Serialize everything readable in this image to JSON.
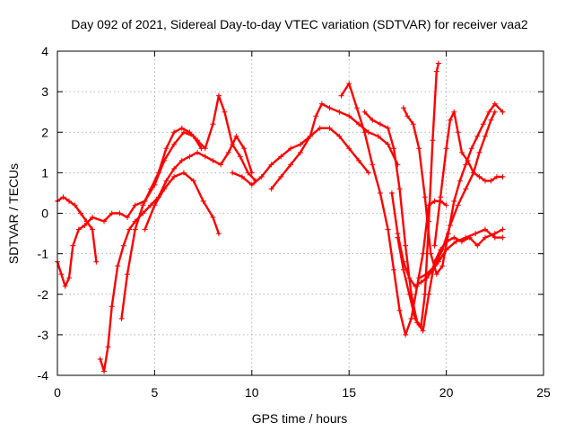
{
  "chart_data": {
    "type": "scatter",
    "title": "Day 092 of 2021, Sidereal Day-to-day VTEC variation (SDTVAR) for receiver vaa2",
    "xlabel": "GPS time / hours",
    "ylabel": "SDTVAR / TECUs",
    "xlim": [
      0,
      25
    ],
    "ylim": [
      -4,
      4
    ],
    "xticks": [
      "0",
      "5",
      "10",
      "15",
      "20",
      "25"
    ],
    "yticks": [
      "-4",
      "-3",
      "-2",
      "-1",
      "0",
      "1",
      "2",
      "3",
      "4"
    ],
    "grid": true,
    "marker": "plus",
    "color": "#ff0000",
    "series": [
      {
        "points": [
          [
            0.0,
            0.3
          ],
          [
            0.3,
            0.4
          ],
          [
            0.6,
            0.3
          ],
          [
            0.9,
            0.2
          ],
          [
            1.2,
            0.0
          ],
          [
            1.5,
            -0.2
          ],
          [
            1.8,
            -0.4
          ],
          [
            2.0,
            -1.2
          ]
        ]
      },
      {
        "points": [
          [
            0.0,
            -1.2
          ],
          [
            0.2,
            -1.5
          ],
          [
            0.4,
            -1.8
          ],
          [
            0.6,
            -1.6
          ],
          [
            0.8,
            -0.8
          ],
          [
            1.1,
            -0.4
          ],
          [
            1.4,
            -0.3
          ],
          [
            1.8,
            -0.1
          ],
          [
            2.4,
            -0.2
          ],
          [
            2.8,
            0.0
          ],
          [
            3.2,
            0.0
          ],
          [
            3.6,
            -0.1
          ],
          [
            4.0,
            0.2
          ],
          [
            4.5,
            0.3
          ],
          [
            5.0,
            0.7
          ],
          [
            5.5,
            1.3
          ],
          [
            6.0,
            1.7
          ],
          [
            6.5,
            2.0
          ],
          [
            7.0,
            1.9
          ],
          [
            7.4,
            1.6
          ]
        ]
      },
      {
        "points": [
          [
            2.2,
            -3.6
          ],
          [
            2.4,
            -3.9
          ],
          [
            2.6,
            -3.3
          ],
          [
            2.8,
            -2.3
          ],
          [
            3.1,
            -1.3
          ],
          [
            3.4,
            -0.8
          ],
          [
            3.7,
            -0.4
          ],
          [
            4.0,
            -0.2
          ],
          [
            4.4,
            0.0
          ],
          [
            4.8,
            0.2
          ],
          [
            5.2,
            0.4
          ],
          [
            5.6,
            0.8
          ],
          [
            6.0,
            1.1
          ],
          [
            6.4,
            1.3
          ],
          [
            6.8,
            1.4
          ],
          [
            7.2,
            1.5
          ],
          [
            7.6,
            1.4
          ],
          [
            8.0,
            1.3
          ],
          [
            8.4,
            1.2
          ],
          [
            8.8,
            1.5
          ],
          [
            9.2,
            1.9
          ],
          [
            9.6,
            1.6
          ],
          [
            10.0,
            1.0
          ]
        ]
      },
      {
        "points": [
          [
            3.3,
            -2.6
          ],
          [
            3.6,
            -1.5
          ],
          [
            4.0,
            -0.4
          ],
          [
            4.4,
            0.2
          ],
          [
            4.8,
            0.6
          ],
          [
            5.2,
            1.0
          ],
          [
            5.6,
            1.6
          ],
          [
            6.0,
            2.0
          ],
          [
            6.4,
            2.1
          ],
          [
            6.8,
            2.0
          ],
          [
            7.2,
            1.8
          ],
          [
            7.6,
            1.6
          ],
          [
            8.0,
            2.2
          ],
          [
            8.3,
            2.9
          ],
          [
            8.6,
            2.5
          ],
          [
            9.0,
            1.7
          ],
          [
            9.4,
            1.4
          ],
          [
            9.8,
            1.0
          ],
          [
            10.2,
            0.8
          ]
        ]
      },
      {
        "points": [
          [
            4.5,
            -0.4
          ],
          [
            5.0,
            0.2
          ],
          [
            5.5,
            0.6
          ],
          [
            6.0,
            0.9
          ],
          [
            6.5,
            1.0
          ],
          [
            7.0,
            0.8
          ],
          [
            7.5,
            0.3
          ],
          [
            8.0,
            -0.1
          ],
          [
            8.3,
            -0.5
          ]
        ]
      },
      {
        "points": [
          [
            9.0,
            1.0
          ],
          [
            9.5,
            0.9
          ],
          [
            10.0,
            0.7
          ],
          [
            10.5,
            0.9
          ],
          [
            11.0,
            1.2
          ],
          [
            11.5,
            1.4
          ],
          [
            12.0,
            1.6
          ],
          [
            12.5,
            1.7
          ],
          [
            13.0,
            1.9
          ],
          [
            13.5,
            2.1
          ],
          [
            14.0,
            2.1
          ],
          [
            14.5,
            1.9
          ],
          [
            15.0,
            1.6
          ],
          [
            15.5,
            1.3
          ],
          [
            16.0,
            1.0
          ]
        ]
      },
      {
        "points": [
          [
            11.0,
            0.6
          ],
          [
            11.5,
            0.9
          ],
          [
            12.0,
            1.2
          ],
          [
            12.5,
            1.5
          ],
          [
            13.0,
            1.9
          ],
          [
            13.3,
            2.4
          ],
          [
            13.6,
            2.7
          ],
          [
            14.0,
            2.6
          ],
          [
            14.5,
            2.5
          ],
          [
            15.0,
            2.4
          ],
          [
            15.5,
            2.2
          ],
          [
            16.0,
            2.0
          ],
          [
            16.5,
            1.9
          ],
          [
            17.0,
            1.7
          ],
          [
            17.5,
            1.2
          ]
        ]
      },
      {
        "points": [
          [
            14.6,
            2.9
          ],
          [
            15.0,
            3.2
          ],
          [
            15.4,
            2.6
          ],
          [
            15.8,
            2.0
          ],
          [
            16.2,
            1.2
          ],
          [
            16.6,
            0.5
          ],
          [
            17.0,
            -0.4
          ],
          [
            17.3,
            -1.4
          ],
          [
            17.6,
            -2.4
          ],
          [
            17.9,
            -3.0
          ],
          [
            18.2,
            -2.6
          ],
          [
            18.5,
            -1.8
          ],
          [
            18.8,
            -1.0
          ],
          [
            19.1,
            0.2
          ],
          [
            19.4,
            0.3
          ],
          [
            19.7,
            0.3
          ],
          [
            20.0,
            0.2
          ]
        ]
      },
      {
        "points": [
          [
            15.8,
            2.5
          ],
          [
            16.2,
            2.3
          ],
          [
            16.6,
            2.2
          ],
          [
            17.0,
            2.1
          ],
          [
            17.3,
            1.6
          ],
          [
            17.6,
            0.6
          ],
          [
            17.9,
            -0.8
          ],
          [
            18.2,
            -2.0
          ],
          [
            18.5,
            -2.7
          ],
          [
            18.8,
            -2.9
          ],
          [
            19.1,
            -2.0
          ],
          [
            19.4,
            -1.2
          ],
          [
            19.7,
            -0.9
          ],
          [
            20.0,
            -0.7
          ],
          [
            20.4,
            -0.6
          ],
          [
            20.8,
            -0.7
          ],
          [
            21.2,
            -0.6
          ],
          [
            21.6,
            -0.8
          ],
          [
            22.0,
            -0.6
          ],
          [
            22.5,
            -0.5
          ],
          [
            22.9,
            -0.4
          ]
        ]
      },
      {
        "points": [
          [
            17.2,
            0.5
          ],
          [
            17.5,
            -0.5
          ],
          [
            17.8,
            -1.2
          ],
          [
            18.1,
            -1.6
          ],
          [
            18.4,
            -1.8
          ],
          [
            18.7,
            -1.7
          ],
          [
            19.0,
            -1.6
          ],
          [
            19.3,
            -1.4
          ],
          [
            19.6,
            -1.2
          ],
          [
            20.0,
            -0.9
          ],
          [
            20.5,
            -0.7
          ],
          [
            21.0,
            -0.6
          ],
          [
            21.5,
            -0.5
          ],
          [
            22.0,
            -0.4
          ],
          [
            22.5,
            -0.6
          ],
          [
            22.9,
            -0.6
          ]
        ]
      },
      {
        "points": [
          [
            17.5,
            -0.6
          ],
          [
            17.8,
            -1.4
          ],
          [
            18.1,
            -2.0
          ],
          [
            18.4,
            -2.6
          ],
          [
            18.7,
            -2.8
          ],
          [
            18.9,
            -2.0
          ],
          [
            19.1,
            -0.2
          ],
          [
            19.3,
            1.8
          ],
          [
            19.5,
            3.5
          ],
          [
            19.6,
            3.7
          ]
        ]
      },
      {
        "points": [
          [
            17.8,
            2.6
          ],
          [
            18.0,
            2.4
          ],
          [
            18.3,
            2.2
          ],
          [
            18.6,
            1.6
          ],
          [
            18.9,
            0.4
          ],
          [
            19.2,
            -1.0
          ],
          [
            19.5,
            -1.5
          ],
          [
            19.8,
            -1.3
          ],
          [
            20.1,
            -0.5
          ],
          [
            20.4,
            0.3
          ],
          [
            20.7,
            0.8
          ],
          [
            21.0,
            1.2
          ],
          [
            21.3,
            1.6
          ],
          [
            21.6,
            1.9
          ],
          [
            21.9,
            2.2
          ],
          [
            22.2,
            2.5
          ],
          [
            22.5,
            2.7
          ],
          [
            22.9,
            2.5
          ]
        ]
      },
      {
        "points": [
          [
            18.6,
            -1.6
          ],
          [
            19.0,
            -1.5
          ],
          [
            19.4,
            -1.3
          ],
          [
            19.8,
            -0.9
          ],
          [
            20.2,
            -0.3
          ],
          [
            20.6,
            0.2
          ],
          [
            21.0,
            0.6
          ],
          [
            21.4,
            1.0
          ],
          [
            21.7,
            1.5
          ],
          [
            22.0,
            1.9
          ],
          [
            22.3,
            2.3
          ],
          [
            22.5,
            2.5
          ]
        ]
      },
      {
        "points": [
          [
            19.4,
            -0.8
          ],
          [
            19.7,
            0.4
          ],
          [
            20.0,
            1.6
          ],
          [
            20.2,
            2.3
          ],
          [
            20.4,
            2.5
          ],
          [
            20.6,
            2.0
          ],
          [
            20.8,
            1.5
          ],
          [
            21.1,
            1.3
          ],
          [
            21.4,
            1.0
          ],
          [
            21.7,
            0.9
          ],
          [
            22.0,
            0.8
          ],
          [
            22.3,
            0.8
          ],
          [
            22.6,
            0.9
          ],
          [
            22.9,
            0.9
          ]
        ]
      }
    ]
  }
}
